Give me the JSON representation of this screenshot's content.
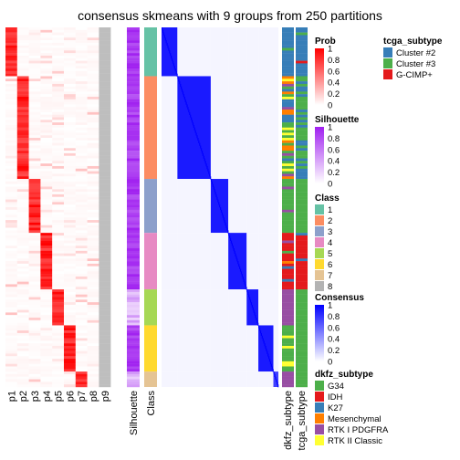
{
  "chart_data": {
    "type": "heatmap",
    "title": "consensus skmeans with 9 groups from 250 partitions",
    "n_samples": 140,
    "class_blocks": [
      {
        "class": "1",
        "count": 19
      },
      {
        "class": "2",
        "count": 40
      },
      {
        "class": "3",
        "count": 21
      },
      {
        "class": "4",
        "count": 22
      },
      {
        "class": "5",
        "count": 14
      },
      {
        "class": "6",
        "count": 18
      },
      {
        "class": "7",
        "count": 6
      }
    ],
    "prob_columns": [
      "p1",
      "p2",
      "p3",
      "p4",
      "p5",
      "p6",
      "p7",
      "p8",
      "p9"
    ],
    "annotation_columns": [
      "Silhouette",
      "Class",
      "dkfz_subtype",
      "tcga_subtype"
    ],
    "legends": {
      "prob": {
        "title": "Prob",
        "ticks": [
          "1",
          "0.8",
          "0.6",
          "0.4",
          "0.2",
          "0"
        ],
        "colors": [
          "#ff0000",
          "#ffffff"
        ]
      },
      "silhouette": {
        "title": "Silhouette",
        "ticks": [
          "1",
          "0.8",
          "0.6",
          "0.4",
          "0.2",
          "0"
        ],
        "colors": [
          "#a020f0",
          "#ffffff"
        ]
      },
      "class": {
        "title": "Class",
        "items": [
          {
            "label": "1",
            "color": "#66c2a5"
          },
          {
            "label": "2",
            "color": "#fc8d62"
          },
          {
            "label": "3",
            "color": "#8da0cb"
          },
          {
            "label": "4",
            "color": "#e78ac3"
          },
          {
            "label": "5",
            "color": "#a6d854"
          },
          {
            "label": "6",
            "color": "#ffd92f"
          },
          {
            "label": "7",
            "color": "#e5c494"
          },
          {
            "label": "8",
            "color": "#b3b3b3"
          }
        ]
      },
      "consensus": {
        "title": "Consensus",
        "ticks": [
          "1",
          "0.8",
          "0.6",
          "0.4",
          "0.2",
          "0"
        ],
        "colors": [
          "#0000ff",
          "#ffffff"
        ]
      },
      "dkfz_subtype": {
        "title": "dkfz_subtype",
        "items": [
          {
            "label": "G34",
            "color": "#4daf4a"
          },
          {
            "label": "IDH",
            "color": "#e41a1c"
          },
          {
            "label": "K27",
            "color": "#377eb8"
          },
          {
            "label": "Mesenchymal",
            "color": "#ff7f00"
          },
          {
            "label": "RTK I PDGFRA",
            "color": "#984ea3"
          },
          {
            "label": "RTK II Classic",
            "color": "#ffff33"
          }
        ]
      },
      "tcga_subtype": {
        "title": "tcga_subtype",
        "items": [
          {
            "label": "Cluster #2",
            "color": "#377eb8"
          },
          {
            "label": "Cluster #3",
            "color": "#4daf4a"
          },
          {
            "label": "G-CIMP+",
            "color": "#e41a1c"
          }
        ]
      }
    }
  }
}
